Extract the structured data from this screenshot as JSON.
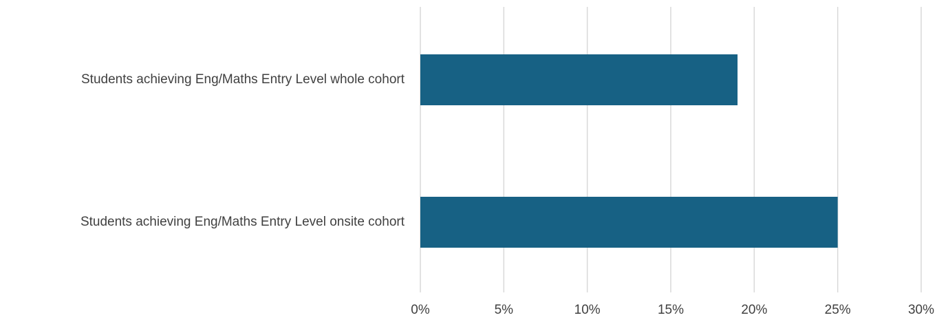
{
  "chart_data": {
    "type": "bar",
    "orientation": "horizontal",
    "categories": [
      "Students achieving  Eng/Maths Entry Level whole cohort",
      "Students achieving  Eng/Maths Entry Level onsite cohort"
    ],
    "values": [
      0.19,
      0.25
    ],
    "xlim": [
      0,
      0.3
    ],
    "ticks": [
      0,
      0.05,
      0.1,
      0.15,
      0.2,
      0.25,
      0.3
    ],
    "tick_labels": [
      "0%",
      "5%",
      "10%",
      "15%",
      "20%",
      "25%",
      "30%"
    ],
    "grid": "vertical",
    "legend": "none",
    "bar_color": "#176184",
    "grid_color": "#d9d9d9",
    "text_color": "#404040"
  }
}
